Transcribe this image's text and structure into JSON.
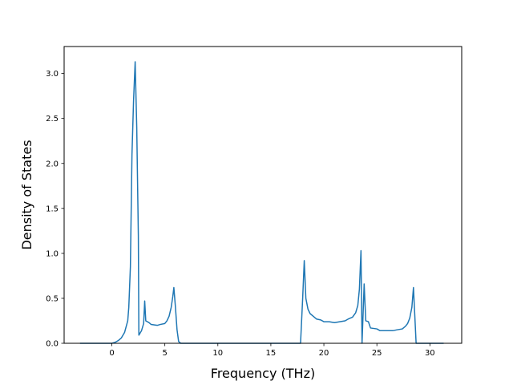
{
  "chart_data": {
    "type": "line",
    "title": "",
    "xlabel": "Frequency (THz)",
    "ylabel": "Density of States",
    "xlim": [
      -4.5,
      33.0
    ],
    "ylim": [
      0.0,
      3.3
    ],
    "x_ticks": [
      0,
      5,
      10,
      15,
      20,
      25,
      30
    ],
    "y_ticks": [
      0.0,
      0.5,
      1.0,
      1.5,
      2.0,
      2.5,
      3.0
    ],
    "grid": false,
    "legend": "none",
    "colors": {
      "line": "#1f77b4",
      "axes": "#000000",
      "background": "#ffffff"
    },
    "series": [
      {
        "points": [
          [
            -3.0,
            0.0
          ],
          [
            -1.0,
            0.0
          ],
          [
            0.0,
            0.0
          ],
          [
            0.3,
            0.01
          ],
          [
            0.6,
            0.03
          ],
          [
            0.9,
            0.06
          ],
          [
            1.2,
            0.12
          ],
          [
            1.5,
            0.25
          ],
          [
            1.6,
            0.4
          ],
          [
            1.75,
            0.85
          ],
          [
            1.9,
            2.1
          ],
          [
            2.05,
            2.7
          ],
          [
            2.2,
            3.13
          ],
          [
            2.35,
            2.4
          ],
          [
            2.5,
            1.2
          ],
          [
            2.55,
            0.09
          ],
          [
            2.8,
            0.14
          ],
          [
            3.0,
            0.22
          ],
          [
            3.1,
            0.47
          ],
          [
            3.2,
            0.25
          ],
          [
            3.5,
            0.23
          ],
          [
            3.7,
            0.21
          ],
          [
            4.3,
            0.2
          ],
          [
            4.6,
            0.21
          ],
          [
            5.0,
            0.22
          ],
          [
            5.2,
            0.25
          ],
          [
            5.4,
            0.3
          ],
          [
            5.6,
            0.4
          ],
          [
            5.75,
            0.52
          ],
          [
            5.85,
            0.62
          ],
          [
            6.0,
            0.4
          ],
          [
            6.15,
            0.15
          ],
          [
            6.3,
            0.02
          ],
          [
            6.5,
            0.0
          ],
          [
            10.0,
            0.0
          ],
          [
            15.0,
            0.0
          ],
          [
            17.8,
            0.0
          ],
          [
            18.0,
            0.5
          ],
          [
            18.15,
            0.92
          ],
          [
            18.3,
            0.5
          ],
          [
            18.5,
            0.38
          ],
          [
            18.7,
            0.33
          ],
          [
            19.0,
            0.3
          ],
          [
            19.3,
            0.27
          ],
          [
            19.7,
            0.26
          ],
          [
            20.0,
            0.24
          ],
          [
            20.5,
            0.24
          ],
          [
            21.0,
            0.23
          ],
          [
            21.5,
            0.24
          ],
          [
            22.0,
            0.25
          ],
          [
            22.3,
            0.27
          ],
          [
            22.7,
            0.29
          ],
          [
            23.0,
            0.34
          ],
          [
            23.2,
            0.42
          ],
          [
            23.35,
            0.6
          ],
          [
            23.5,
            1.03
          ],
          [
            23.6,
            0.0
          ],
          [
            23.8,
            0.66
          ],
          [
            23.95,
            0.25
          ],
          [
            24.2,
            0.24
          ],
          [
            24.4,
            0.17
          ],
          [
            25.0,
            0.16
          ],
          [
            25.3,
            0.14
          ],
          [
            26.5,
            0.14
          ],
          [
            26.9,
            0.15
          ],
          [
            27.4,
            0.16
          ],
          [
            27.7,
            0.19
          ],
          [
            27.9,
            0.22
          ],
          [
            28.1,
            0.28
          ],
          [
            28.3,
            0.4
          ],
          [
            28.45,
            0.62
          ],
          [
            28.6,
            0.25
          ],
          [
            28.7,
            0.0
          ],
          [
            30.0,
            0.0
          ],
          [
            31.3,
            0.0
          ]
        ]
      }
    ]
  }
}
